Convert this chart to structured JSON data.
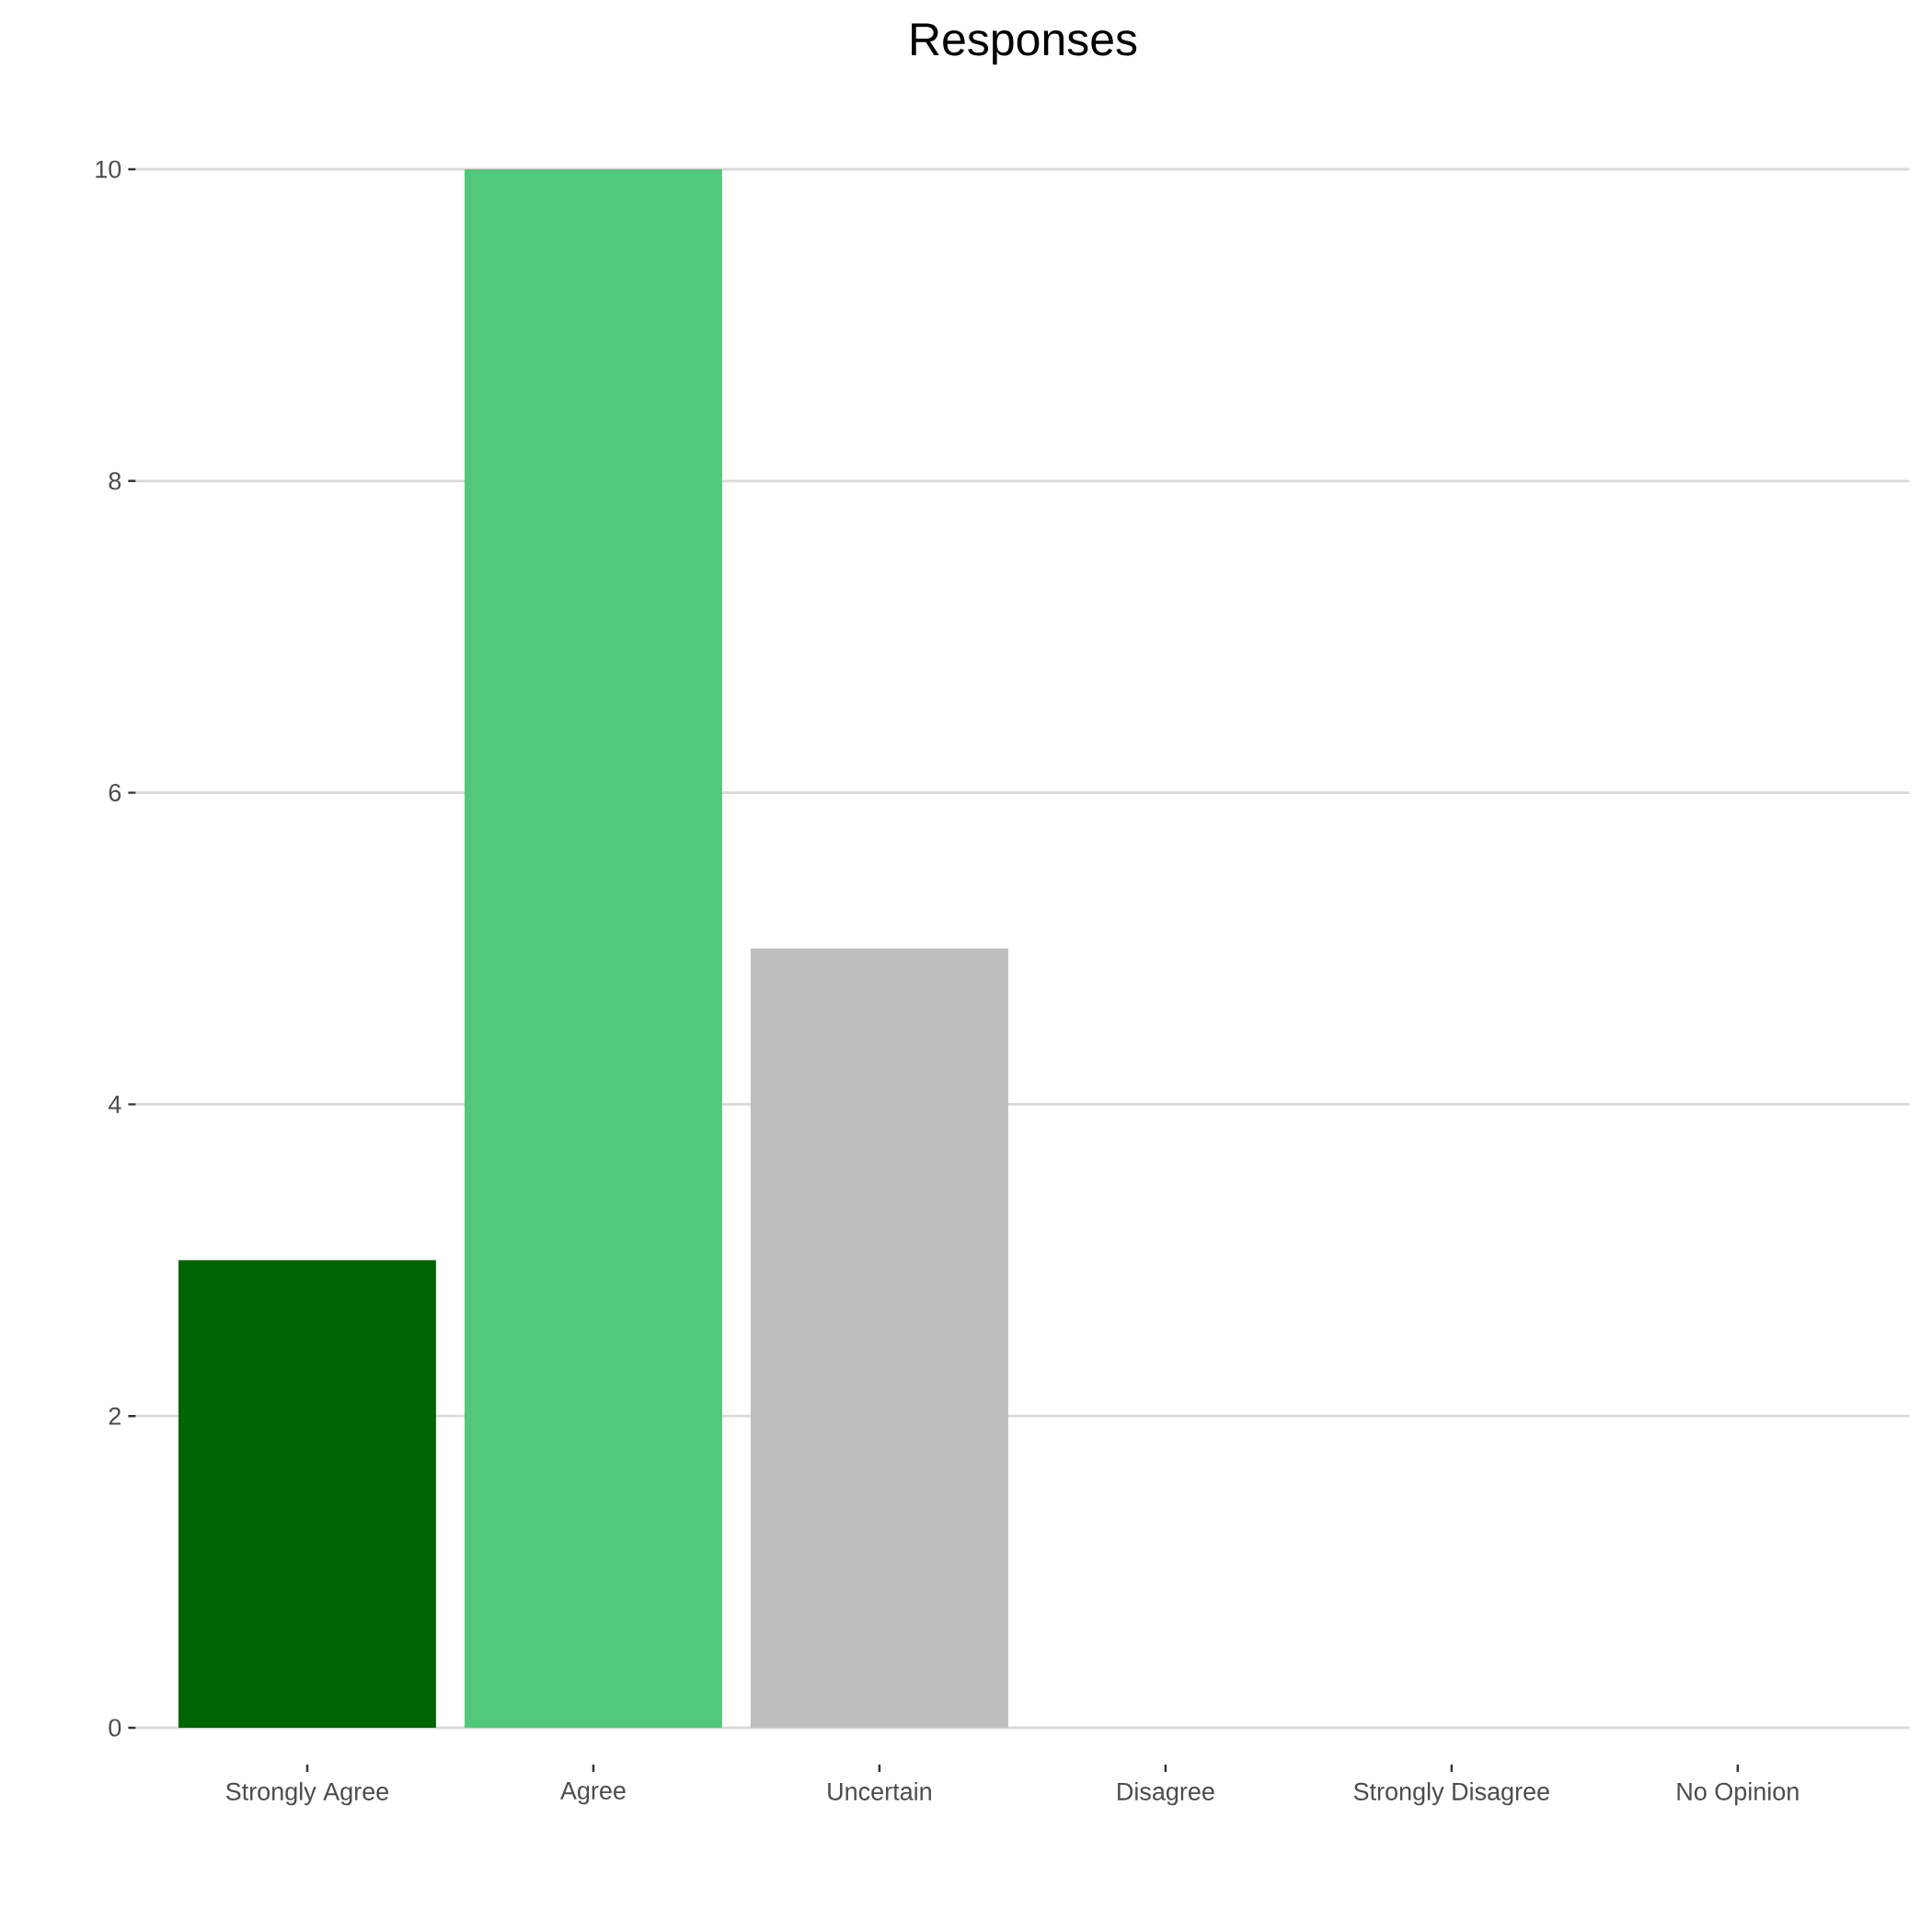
{
  "chart_data": {
    "type": "bar",
    "title": "Responses",
    "categories": [
      "Strongly Agree",
      "Agree",
      "Uncertain",
      "Disagree",
      "Strongly Disagree",
      "No Opinion"
    ],
    "values": [
      3,
      10,
      5,
      0,
      0,
      0
    ],
    "colors": [
      "#006400",
      "#52c87a",
      "#bebebe",
      "#f4a582",
      "#ca0020",
      "#808080"
    ],
    "ylim": [
      0,
      10
    ],
    "yticks": [
      0,
      2,
      4,
      6,
      8,
      10
    ],
    "grid": "y"
  }
}
